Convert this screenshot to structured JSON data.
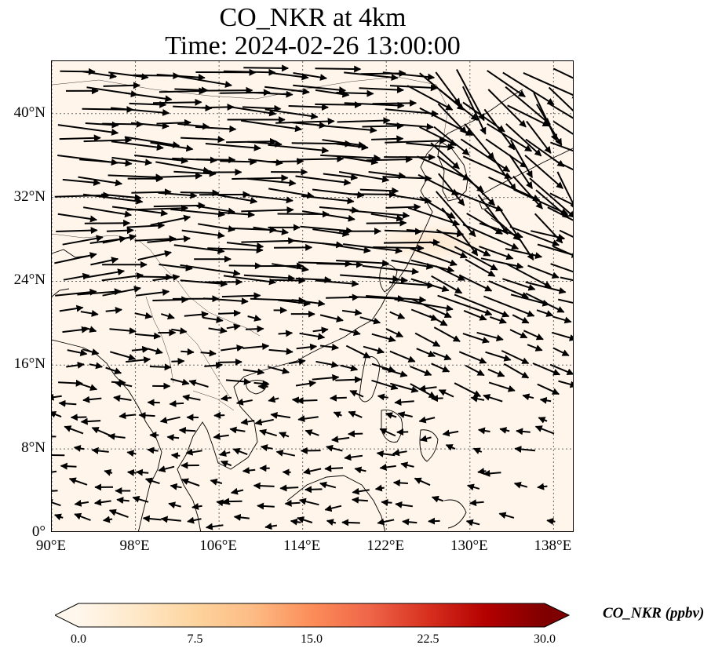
{
  "title": {
    "line1": "CO_NKR at 4km",
    "line2": "Time: 2024-02-26 13:00:00"
  },
  "map": {
    "extent": {
      "lon": [
        90,
        140
      ],
      "lat": [
        0,
        45
      ]
    },
    "gridlines": "dotted",
    "background_color": "#fff5ea",
    "lat_ticks": [
      {
        "value": 0,
        "label": "0°"
      },
      {
        "value": 8,
        "label": "8°N"
      },
      {
        "value": 16,
        "label": "16°N"
      },
      {
        "value": 24,
        "label": "24°N"
      },
      {
        "value": 32,
        "label": "32°N"
      },
      {
        "value": 40,
        "label": "40°N"
      }
    ],
    "lon_ticks": [
      {
        "value": 90,
        "label": "90°E"
      },
      {
        "value": 98,
        "label": "98°E"
      },
      {
        "value": 106,
        "label": "106°E"
      },
      {
        "value": 114,
        "label": "114°E"
      },
      {
        "value": 122,
        "label": "122°E"
      },
      {
        "value": 130,
        "label": "130°E"
      },
      {
        "value": 138,
        "label": "138°E"
      }
    ],
    "plume": {
      "center": [
        126.5,
        27.7
      ],
      "color": "#fde7cf"
    },
    "wind_vectors": "black arrows, strong westerlies north of ~22°N, weaker easterlies south"
  },
  "colorbar": {
    "label": "CO_NKR (ppbv)",
    "min": 0.0,
    "max": 30.0,
    "ticks": [
      "0.0",
      "7.5",
      "15.0",
      "22.5",
      "30.0"
    ],
    "tick_values": [
      0,
      7.5,
      15,
      22.5,
      30
    ],
    "extend": "both",
    "colormap": "OrRd",
    "colors": [
      "#fff7ec",
      "#fee8c8",
      "#fdd49e",
      "#fdbb84",
      "#fc8d59",
      "#ef6548",
      "#d7301f",
      "#b30000",
      "#7f0000"
    ]
  }
}
